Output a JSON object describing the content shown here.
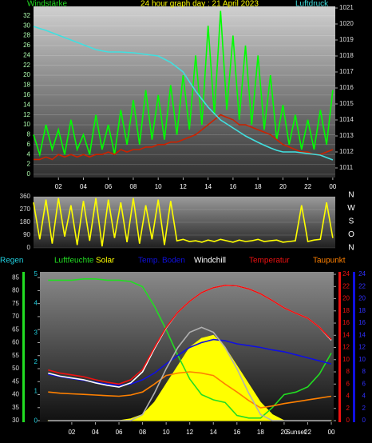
{
  "chart_data": [
    {
      "type": "line",
      "title": "24 hour graph day : 21 April 2023",
      "ylabel": "Windstärke",
      "y2label": "Luftdruck",
      "x": [
        0,
        0.5,
        1,
        1.5,
        2,
        2.5,
        3,
        3.5,
        4,
        4.5,
        5,
        5.5,
        6,
        6.5,
        7,
        7.5,
        8,
        8.5,
        9,
        9.5,
        10,
        10.5,
        11,
        11.5,
        12,
        12.5,
        13,
        13.5,
        14,
        14.5,
        15,
        15.5,
        16,
        16.5,
        17,
        17.5,
        18,
        18.5,
        19,
        19.5,
        20,
        20.5,
        21,
        21.5,
        22,
        22.5,
        23,
        23.5,
        24
      ],
      "xlim": [
        0,
        24.2
      ],
      "xticks": [
        {
          "value": 2,
          "label": "02"
        },
        {
          "value": 4,
          "label": "04"
        },
        {
          "value": 6,
          "label": "06"
        },
        {
          "value": 8,
          "label": "08"
        },
        10,
        12,
        14,
        16,
        18,
        20,
        22,
        {
          "value": 24,
          "label": "00"
        }
      ],
      "ylim": [
        -0.65,
        33.9
      ],
      "yticks": [
        0,
        2,
        4,
        6,
        8,
        10,
        12,
        14,
        16,
        18,
        20,
        22,
        24,
        26,
        28,
        30,
        32
      ],
      "y2lim": [
        1010.4,
        1021.1
      ],
      "y2ticks": [
        1011,
        1012,
        1013,
        1014,
        1015,
        1016,
        1017,
        1018,
        1019,
        1020,
        1021
      ],
      "grid": true,
      "series": [
        {
          "color": "#00ff00",
          "values": [
            8,
            4,
            10,
            5,
            9,
            4,
            11,
            5,
            8,
            4,
            12,
            5,
            10,
            4,
            13,
            6,
            15,
            6,
            17,
            7,
            16,
            7,
            18,
            8,
            20,
            9,
            24,
            10,
            30,
            12,
            33,
            13,
            28,
            11,
            26,
            10,
            24,
            9,
            20,
            7,
            14,
            6,
            12,
            5,
            11,
            5,
            13,
            6,
            17
          ]
        },
        {
          "color": "#cc2200",
          "values": [
            3,
            3,
            3.5,
            3,
            4,
            3.5,
            4,
            3.5,
            4,
            3.5,
            4,
            4,
            4.5,
            4,
            5,
            4.5,
            5,
            5,
            5.5,
            5.5,
            6,
            6,
            6.5,
            6.5,
            7,
            7.5,
            8,
            9,
            10,
            11,
            12,
            11.5,
            11,
            10,
            10,
            9.5,
            9,
            8.5,
            8,
            7,
            6,
            5.5,
            5,
            4.5,
            4.5,
            4,
            4,
            4.5,
            5
          ]
        },
        {
          "color": "#40e0e0",
          "axis": "y2",
          "values": [
            1019.85,
            1019.72,
            1019.6,
            1019.45,
            1019.3,
            1019.15,
            1019,
            1018.85,
            1018.7,
            1018.55,
            1018.4,
            1018.32,
            1018.25,
            1018.25,
            1018.25,
            1018.22,
            1018.2,
            1018.15,
            1018.1,
            1018.05,
            1018,
            1017.8,
            1017.6,
            1017.3,
            1017,
            1016.4,
            1015.8,
            1015.3,
            1014.8,
            1014.4,
            1014,
            1013.75,
            1013.5,
            1013.25,
            1013,
            1012.8,
            1012.6,
            1012.42,
            1012.25,
            1012.1,
            1012,
            1012,
            1012,
            1011.95,
            1011.9,
            1011.85,
            1011.8,
            1011.65,
            1011.5
          ]
        }
      ]
    },
    {
      "type": "line",
      "x": [
        0,
        0.5,
        1,
        1.5,
        2,
        2.5,
        3,
        3.5,
        4,
        4.5,
        5,
        5.5,
        6,
        6.5,
        7,
        7.5,
        8,
        8.5,
        9,
        9.5,
        10,
        10.5,
        11,
        11.5,
        12,
        12.5,
        13,
        13.5,
        14,
        14.5,
        15,
        15.5,
        16,
        16.5,
        17,
        17.5,
        18,
        18.5,
        19,
        19.5,
        20,
        20.5,
        21,
        21.5,
        22,
        22.5,
        23,
        23.5,
        24
      ],
      "xlim": [
        0,
        24.2
      ],
      "ylim": [
        0,
        360
      ],
      "yticks": [
        0,
        90,
        180,
        270,
        360
      ],
      "compass": [
        "N",
        "W",
        "S",
        "O",
        "N"
      ],
      "grid": true,
      "series": [
        {
          "color": "#ffff00",
          "values": [
            320,
            60,
            340,
            30,
            350,
            80,
            300,
            20,
            330,
            50,
            350,
            10,
            340,
            70,
            320,
            40,
            350,
            30,
            300,
            60,
            340,
            20,
            330,
            50,
            60,
            45,
            50,
            40,
            55,
            45,
            60,
            50,
            40,
            55,
            45,
            50,
            60,
            45,
            50,
            55,
            40,
            45,
            50,
            300,
            45,
            55,
            60,
            320,
            70
          ]
        }
      ]
    },
    {
      "type": "line",
      "rain_label": "Regen",
      "rain_lim": [
        -0.05,
        5.08
      ],
      "rain_ticks": [
        0,
        1,
        2,
        3,
        4,
        5
      ],
      "x": [
        0,
        1,
        2,
        3,
        4,
        5,
        6,
        7,
        8,
        9,
        10,
        11,
        12,
        13,
        14,
        15,
        16,
        17,
        18,
        19,
        20,
        21,
        22,
        23,
        24
      ],
      "xlim": [
        -0.7,
        24.2
      ],
      "xticks": [
        {
          "value": 2,
          "label": "02"
        },
        {
          "value": 4,
          "label": "04"
        },
        {
          "value": 6,
          "label": "06"
        },
        {
          "value": 8,
          "label": "08"
        },
        10,
        12,
        14,
        16,
        18,
        20,
        22,
        {
          "value": 24,
          "label": "00"
        }
      ],
      "annotation": "Sunset",
      "ylim": [
        29.4,
        87.2
      ],
      "yticks": [
        30,
        35,
        40,
        45,
        50,
        55,
        60,
        65,
        70,
        75,
        80,
        85
      ],
      "y2lim": [
        -0.26,
        24.4
      ],
      "y2ticks": [
        0,
        2,
        4,
        6,
        8,
        10,
        12,
        14,
        16,
        18,
        20,
        22,
        24
      ],
      "y3ticks": [
        0,
        2,
        4,
        6,
        8,
        10,
        12,
        14,
        16,
        18,
        20,
        22,
        24
      ],
      "series": [
        {
          "name": "Luftfeuchte",
          "color": "#22dd22",
          "values": [
            84,
            84,
            84,
            84.5,
            84.5,
            84,
            84,
            83.5,
            81.5,
            74,
            65,
            55,
            46,
            40,
            38,
            37,
            32,
            31,
            31,
            35,
            40,
            41,
            43,
            48,
            56
          ]
        },
        {
          "name": "Solar",
          "color": "#ffff00",
          "axis": "y2",
          "fill": true,
          "values": [
            0,
            0,
            0,
            0,
            0,
            0,
            0,
            0.3,
            1,
            3,
            6,
            9,
            12,
            13.5,
            14,
            12,
            9,
            6,
            3,
            1,
            0,
            0,
            0,
            0,
            0
          ]
        },
        {
          "name": "Temp. Boden",
          "color": "#1010e0",
          "axis": "y2",
          "values": [
            7.6,
            7.2,
            6.9,
            6.6,
            6.3,
            6,
            5.8,
            6,
            6.7,
            7.8,
            9.3,
            10.7,
            12,
            12.8,
            13.3,
            13.1,
            12.6,
            12.3,
            12,
            11.6,
            11.3,
            10.8,
            10.3,
            9.8,
            9.3
          ]
        },
        {
          "name": "Windchill",
          "color": "#ffffff",
          "axis": "y2",
          "values": [
            7.8,
            7.3,
            7,
            6.7,
            6.2,
            5.8,
            5.5,
            6.2,
            8,
            11.8,
            15.2,
            17.8,
            19.6,
            21,
            21.8,
            22.2,
            22.1,
            21.6,
            20.8,
            19.7,
            18.5,
            17.6,
            16.8,
            15.3,
            13.2
          ]
        },
        {
          "name": "Temperatur",
          "color": "#ee1111",
          "axis": "y2",
          "values": [
            8.3,
            7.8,
            7.5,
            7.2,
            6.7,
            6.3,
            6,
            6.7,
            8.4,
            12,
            15.3,
            17.8,
            19.6,
            21,
            21.8,
            22.2,
            22.1,
            21.6,
            20.8,
            19.7,
            18.5,
            17.6,
            16.8,
            15.3,
            13.3
          ]
        },
        {
          "name": "Taupunkt",
          "color": "#ff8000",
          "axis": "y2",
          "values": [
            4.7,
            4.5,
            4.4,
            4.3,
            4.2,
            4.1,
            4,
            4.2,
            4.7,
            6,
            7.4,
            7.8,
            8,
            7.8,
            7.4,
            6,
            4.7,
            3.3,
            2.1,
            2.4,
            2.8,
            3.1,
            3.4,
            3.7,
            4
          ]
        },
        {
          "color": "#b0b0b0",
          "axis": "y2",
          "values": [
            0,
            0,
            0,
            0,
            0,
            0,
            0,
            0,
            1,
            4.5,
            8.5,
            12,
            14.5,
            15.3,
            14.5,
            12,
            8.5,
            4.5,
            1,
            0,
            0,
            0,
            0,
            0,
            0
          ]
        }
      ]
    }
  ]
}
